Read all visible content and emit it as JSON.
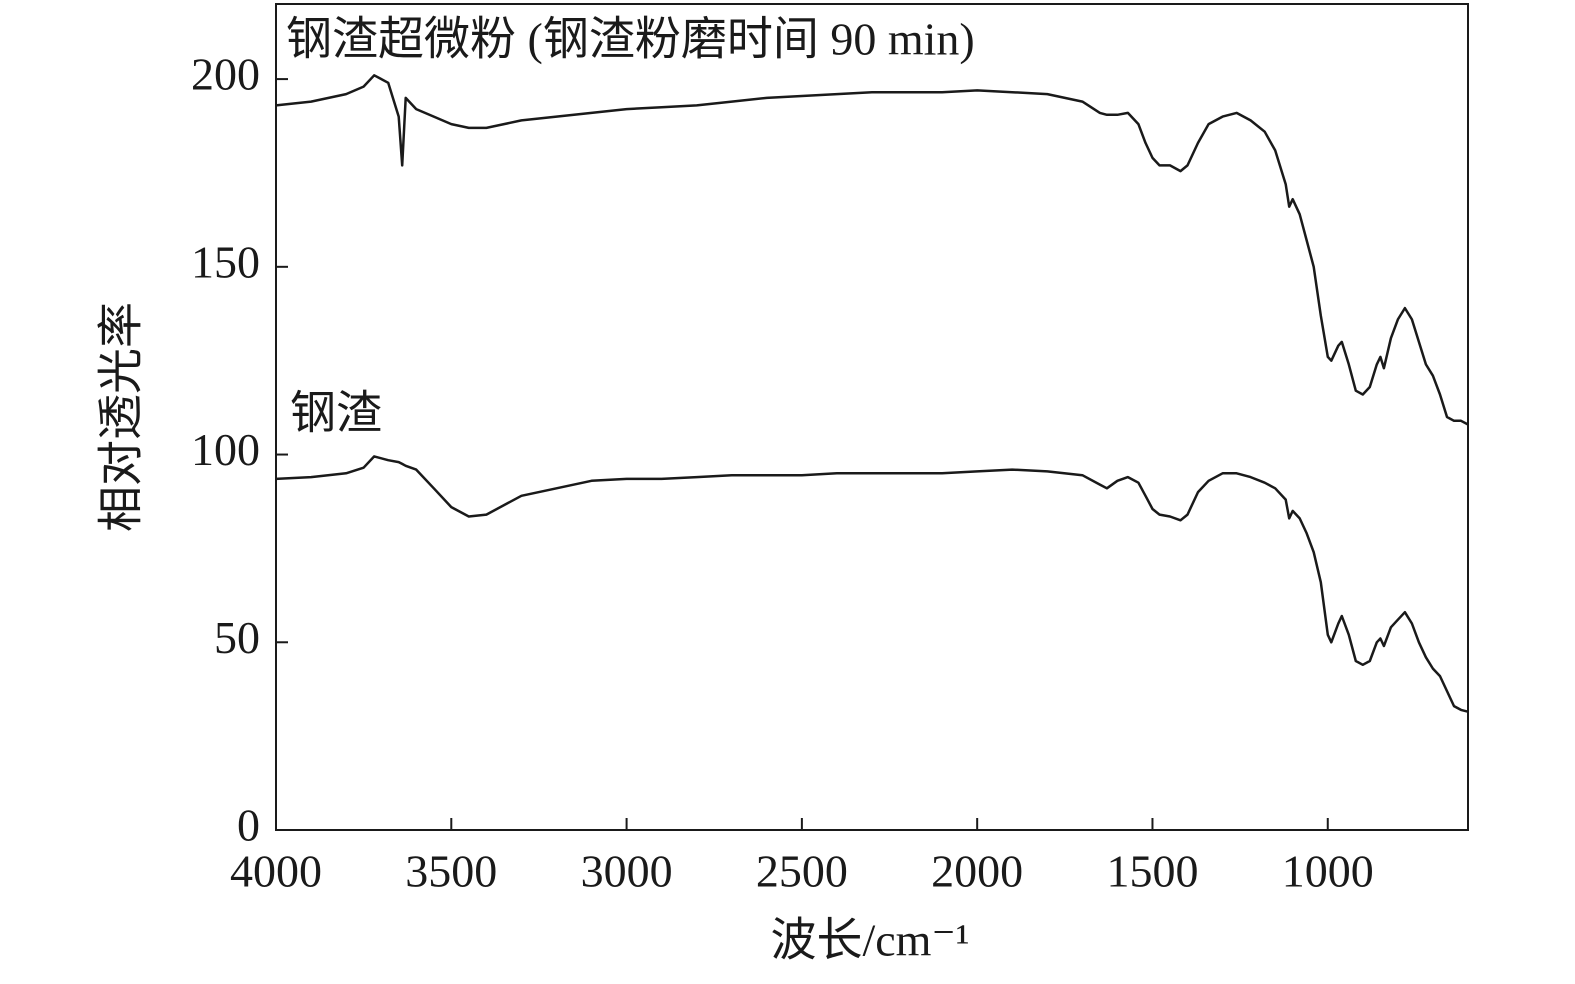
{
  "chart_data": {
    "type": "line",
    "xlabel": "波长/cm⁻¹",
    "ylabel": "相对透光率",
    "xlim": [
      4000,
      600
    ],
    "xticks": [
      4000,
      3500,
      3000,
      2500,
      2000,
      1500,
      1000
    ],
    "ylim": [
      0,
      220
    ],
    "yticks": [
      0,
      50,
      100,
      150,
      200
    ],
    "x": [
      4000,
      3900,
      3800,
      3750,
      3720,
      3680,
      3650,
      3640,
      3630,
      3600,
      3550,
      3500,
      3450,
      3400,
      3300,
      3200,
      3100,
      3000,
      2900,
      2800,
      2700,
      2600,
      2500,
      2400,
      2300,
      2200,
      2100,
      2000,
      1900,
      1800,
      1700,
      1650,
      1630,
      1600,
      1570,
      1540,
      1520,
      1500,
      1480,
      1450,
      1420,
      1400,
      1370,
      1340,
      1300,
      1260,
      1220,
      1180,
      1150,
      1120,
      1110,
      1100,
      1080,
      1060,
      1040,
      1020,
      1000,
      990,
      970,
      960,
      940,
      920,
      900,
      880,
      860,
      850,
      840,
      820,
      800,
      780,
      760,
      740,
      720,
      700,
      680,
      660,
      640,
      620,
      600
    ],
    "series": [
      {
        "name": "钢渣超微粉 (钢渣粉磨时间 90 min)",
        "color": "#1a1a1a",
        "values": [
          193,
          194,
          196,
          198,
          201,
          199,
          190,
          177,
          195,
          192,
          190,
          188,
          187,
          187,
          189,
          190,
          191,
          192,
          192.5,
          193,
          194,
          195,
          195.5,
          196,
          196.5,
          196.5,
          196.5,
          197,
          196.5,
          196,
          194,
          191,
          190.5,
          190.5,
          191,
          188,
          183,
          179,
          177,
          177,
          175.5,
          177,
          183,
          188,
          190,
          191,
          189,
          186,
          181,
          172,
          166,
          168,
          164,
          157,
          150,
          137,
          126,
          125,
          129,
          130,
          124,
          117,
          116,
          118,
          124,
          126,
          123,
          131,
          136,
          139,
          136,
          130,
          124,
          121,
          116,
          110,
          109,
          109,
          108
        ]
      },
      {
        "name": "钢渣",
        "color": "#1a1a1a",
        "values": [
          93.5,
          94,
          95,
          96.5,
          99.5,
          98.5,
          98,
          97.5,
          97,
          96,
          91,
          86,
          83.5,
          84,
          89,
          91,
          93,
          93.5,
          93.5,
          94,
          94.5,
          94.5,
          94.5,
          95,
          95,
          95,
          95,
          95.5,
          96,
          95.5,
          94.5,
          92,
          91,
          93,
          94,
          92.5,
          89,
          85.5,
          84,
          83.5,
          82.5,
          84,
          90,
          93,
          95,
          95,
          94,
          92.5,
          91,
          88,
          83,
          85,
          83,
          79,
          74,
          66,
          52,
          50,
          55,
          57,
          52,
          45,
          44,
          45,
          50,
          51,
          49,
          54,
          56,
          58,
          55,
          50,
          46,
          43,
          41,
          37,
          33,
          32,
          31.5
        ]
      }
    ]
  }
}
